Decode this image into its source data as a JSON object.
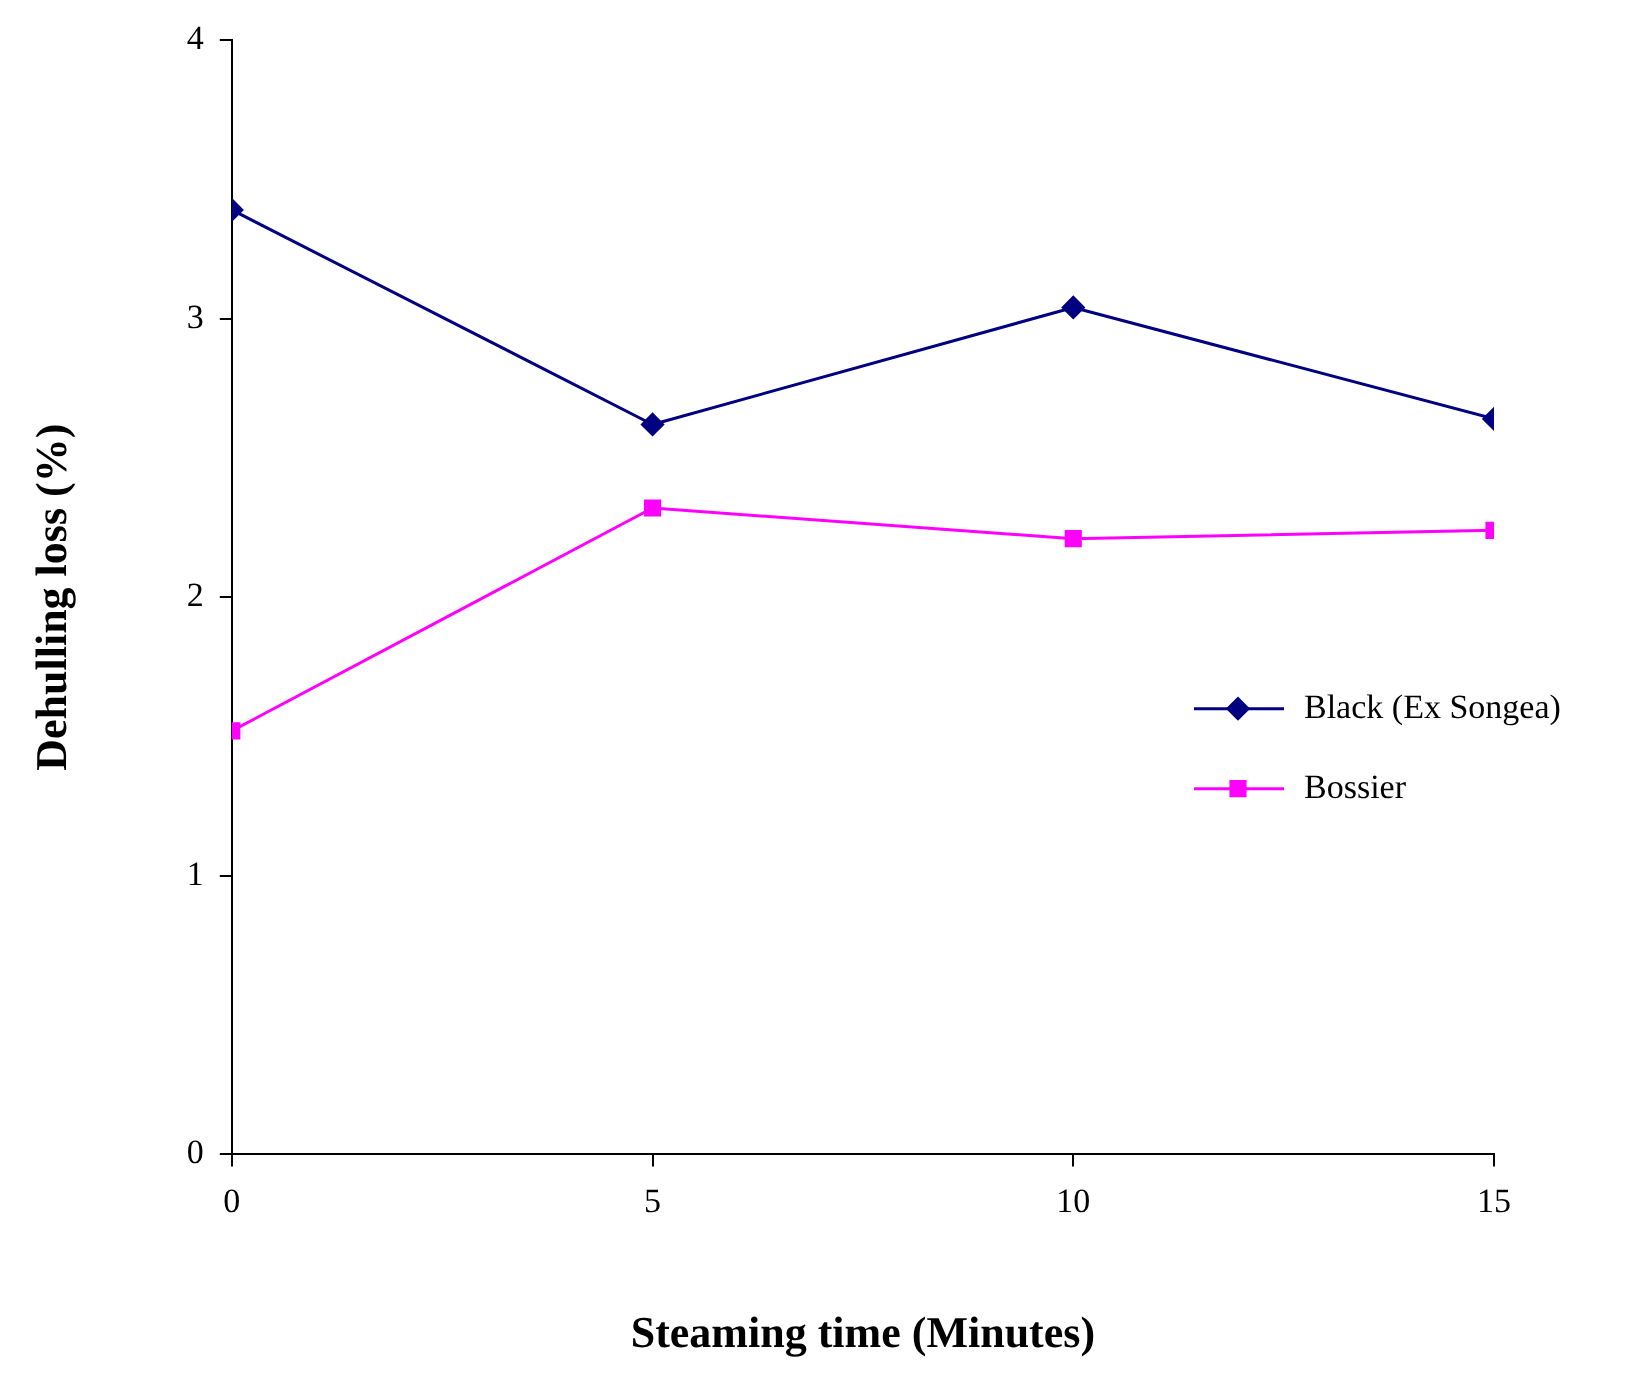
{
  "chart_data": {
    "type": "line",
    "xlabel": "Steaming time (Minutes)",
    "ylabel": "Dehulling loss (%)",
    "x": [
      0,
      5,
      10,
      15
    ],
    "xlim": [
      0,
      15
    ],
    "xticks": [
      0,
      5,
      10,
      15
    ],
    "ylim": [
      0,
      4
    ],
    "yticks": [
      0,
      1,
      2,
      3,
      4
    ],
    "series": [
      {
        "name": "Black (Ex Songea)",
        "color": "#000080",
        "marker": "diamond",
        "values": [
          3.39,
          2.62,
          3.04,
          2.64
        ]
      },
      {
        "name": "Bossier",
        "color": "#ff00ff",
        "marker": "square",
        "values": [
          1.52,
          2.32,
          2.21,
          2.24
        ]
      }
    ],
    "grid": false,
    "legend": "right",
    "line_style": "solid"
  }
}
